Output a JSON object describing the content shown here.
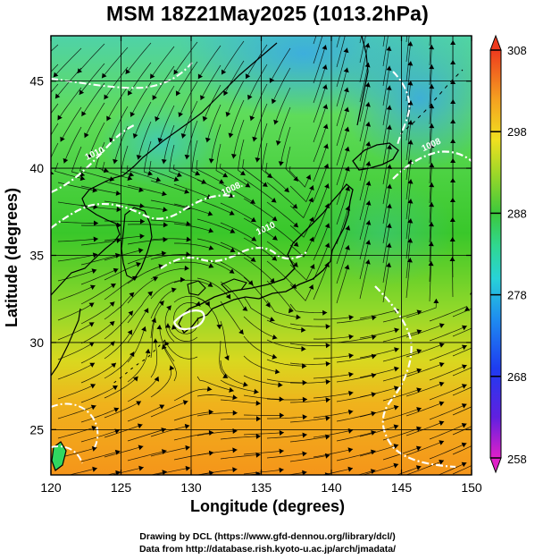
{
  "title": "MSM 18Z21May2025 (1013.2hPa)",
  "x_axis": {
    "label": "Longitude (degrees)",
    "range": [
      120,
      150
    ],
    "ticks": [
      120,
      125,
      130,
      135,
      140,
      145,
      150
    ],
    "tick_labels": [
      "120",
      "125",
      "130",
      "135",
      "140",
      "145",
      "150"
    ]
  },
  "y_axis": {
    "label": "Latitude  (degrees)",
    "range": [
      22.4,
      47.6
    ],
    "ticks": [
      25,
      30,
      35,
      40,
      45
    ],
    "tick_labels": [
      "25",
      "30",
      "35",
      "40",
      "45"
    ]
  },
  "colorbar": {
    "range": [
      258,
      308
    ],
    "ticks": [
      258,
      268,
      278,
      288,
      298,
      308
    ],
    "tick_labels": [
      "258",
      "268",
      "278",
      "288",
      "298",
      "308"
    ]
  },
  "contours": [
    {
      "label": "1010",
      "lon": 123.2,
      "lat": 40.7
    },
    {
      "label": "1008.",
      "lon": 133.0,
      "lat": 38.7
    },
    {
      "label": "1010",
      "lon": 135.4,
      "lat": 36.4
    },
    {
      "label": "1008",
      "lon": 147.2,
      "lat": 41.2
    }
  ],
  "credits": {
    "line1": "Drawing by DCL (https://www.gfd-dennou.org/library/dcl/)",
    "line2": "Data from http://database.rish.kyoto-u.ac.jp/arch/jmadata/"
  }
}
